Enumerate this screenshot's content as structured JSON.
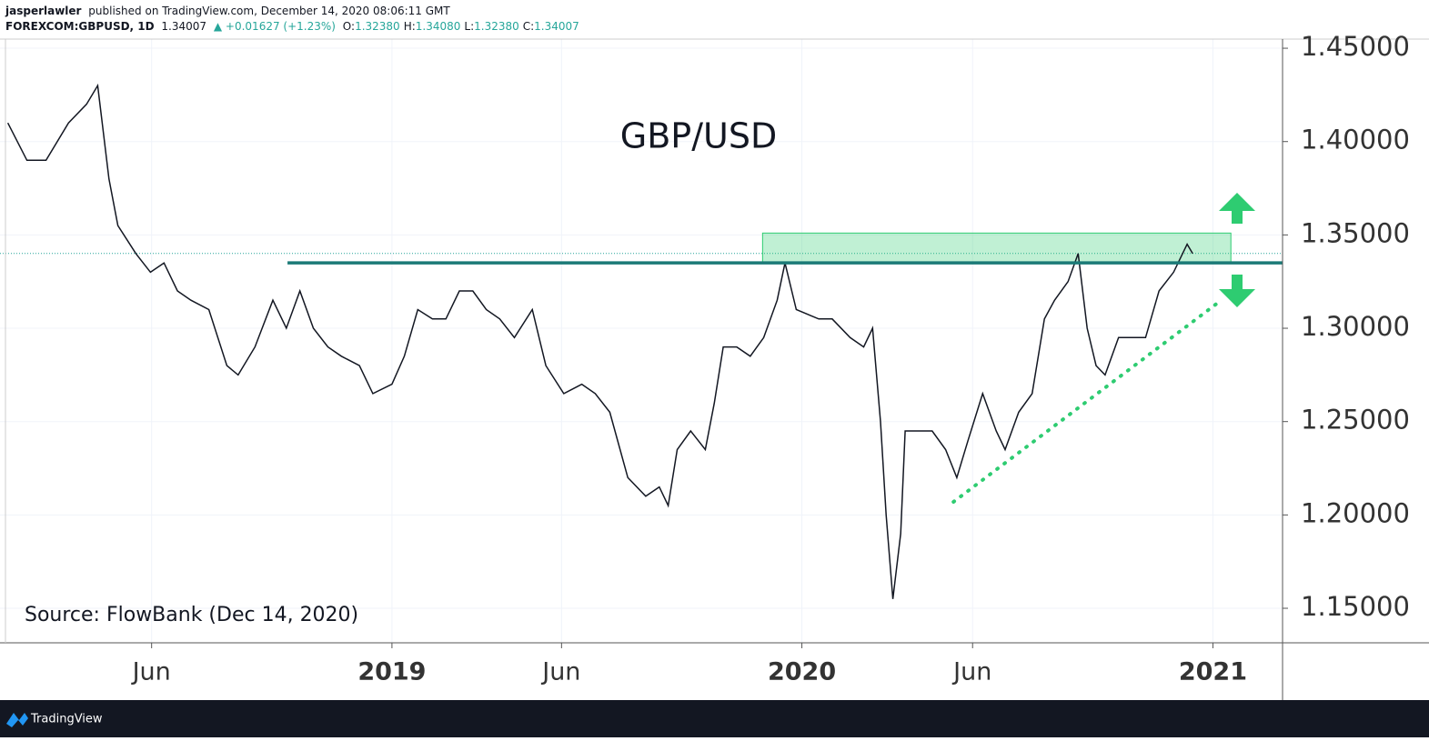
{
  "header": {
    "author": "jasperlawler",
    "published": "published on TradingView.com, December 14, 2020 08:06:11 GMT",
    "symbol": "FOREXCOM:GBPUSD, 1D",
    "last": "1.34007",
    "change": "▲ +0.01627 (+1.23%)",
    "ohlc": [
      {
        "label": "O:",
        "value": "1.32380"
      },
      {
        "label": "H:",
        "value": "1.34080"
      },
      {
        "label": "L:",
        "value": "1.32380"
      },
      {
        "label": "C:",
        "value": "1.34007"
      }
    ]
  },
  "footer": {
    "brand": "TradingView"
  },
  "chart_data": {
    "type": "line",
    "title": "GBP/USD",
    "annotation": "Source: FlowBank (Dec 14, 2020)",
    "color": "#131722",
    "x": [
      "2018-01-24",
      "2018-02-10",
      "2018-02-27",
      "2018-03-19",
      "2018-04-04",
      "2018-04-14",
      "2018-04-24",
      "2018-05-02",
      "2018-05-18",
      "2018-05-31",
      "2018-06-12",
      "2018-06-24",
      "2018-07-06",
      "2018-07-22",
      "2018-08-07",
      "2018-08-17",
      "2018-09-01",
      "2018-09-17",
      "2018-09-29",
      "2018-10-11",
      "2018-10-23",
      "2018-11-05",
      "2018-11-17",
      "2018-12-03",
      "2018-12-15",
      "2019-01-01",
      "2019-01-12",
      "2019-01-24",
      "2019-02-06",
      "2019-02-18",
      "2019-03-02",
      "2019-03-14",
      "2019-03-26",
      "2019-04-07",
      "2019-04-20",
      "2019-05-06",
      "2019-05-18",
      "2019-06-03",
      "2019-06-19",
      "2019-07-01",
      "2019-07-14",
      "2019-07-30",
      "2019-08-15",
      "2019-08-27",
      "2019-09-04",
      "2019-09-12",
      "2019-09-24",
      "2019-10-07",
      "2019-10-15",
      "2019-10-23",
      "2019-11-04",
      "2019-11-16",
      "2019-11-28",
      "2019-12-10",
      "2019-12-17",
      "2019-12-27",
      "2020-01-16",
      "2020-01-28",
      "2020-02-13",
      "2020-02-25",
      "2020-03-04",
      "2020-03-11",
      "2020-03-16",
      "2020-03-22",
      "2020-03-29",
      "2020-04-02",
      "2020-04-14",
      "2020-04-26",
      "2020-05-08",
      "2020-05-18",
      "2020-05-28",
      "2020-06-10",
      "2020-06-22",
      "2020-06-30",
      "2020-07-12",
      "2020-07-24",
      "2020-08-04",
      "2020-08-13",
      "2020-08-25",
      "2020-09-03",
      "2020-09-11",
      "2020-09-19",
      "2020-09-27",
      "2020-10-09",
      "2020-10-21",
      "2020-11-02",
      "2020-11-14",
      "2020-11-27",
      "2020-12-09",
      "2020-12-14"
    ],
    "values": [
      1.41,
      1.39,
      1.39,
      1.41,
      1.42,
      1.43,
      1.38,
      1.355,
      1.34,
      1.33,
      1.335,
      1.32,
      1.315,
      1.31,
      1.28,
      1.275,
      1.29,
      1.315,
      1.3,
      1.32,
      1.3,
      1.29,
      1.285,
      1.28,
      1.265,
      1.27,
      1.285,
      1.31,
      1.305,
      1.305,
      1.32,
      1.32,
      1.31,
      1.305,
      1.295,
      1.31,
      1.28,
      1.265,
      1.27,
      1.265,
      1.255,
      1.22,
      1.21,
      1.215,
      1.205,
      1.235,
      1.245,
      1.235,
      1.26,
      1.29,
      1.29,
      1.285,
      1.295,
      1.315,
      1.335,
      1.31,
      1.305,
      1.305,
      1.295,
      1.29,
      1.3,
      1.25,
      1.2,
      1.155,
      1.19,
      1.245,
      1.245,
      1.245,
      1.235,
      1.22,
      1.24,
      1.265,
      1.245,
      1.235,
      1.255,
      1.265,
      1.305,
      1.315,
      1.325,
      1.34,
      1.3,
      1.28,
      1.275,
      1.295,
      1.295,
      1.295,
      1.32,
      1.33,
      1.345,
      1.34
    ],
    "xlim": [
      "2018-01-17",
      "2021-03-04"
    ],
    "xticks": [
      {
        "value": "2018-06-01",
        "label": "Jun"
      },
      {
        "value": "2019-01-01",
        "label": "2019"
      },
      {
        "value": "2019-06-01",
        "label": "Jun"
      },
      {
        "value": "2020-01-01",
        "label": "2020"
      },
      {
        "value": "2020-06-01",
        "label": "Jun"
      },
      {
        "value": "2021-01-01",
        "label": "2021"
      }
    ],
    "ylim": [
      1.1315,
      1.4549
    ],
    "yticks": [
      {
        "value": 1.15,
        "label": "1.15000"
      },
      {
        "value": 1.2,
        "label": "1.20000"
      },
      {
        "value": 1.25,
        "label": "1.25000"
      },
      {
        "value": 1.3,
        "label": "1.30000"
      },
      {
        "value": 1.35,
        "label": "1.35000"
      },
      {
        "value": 1.4,
        "label": "1.40000"
      },
      {
        "value": 1.45,
        "label": "1.45000"
      }
    ],
    "grid": true,
    "last_price": 1.34007,
    "resistance": {
      "x": [
        "2018-09-30",
        "2021-03-04"
      ],
      "y": 1.335,
      "color": "#1b7a77"
    },
    "zone": {
      "x": [
        "2019-11-27",
        "2021-01-17"
      ],
      "y": [
        1.335,
        1.351
      ],
      "color": "#2ecc71"
    },
    "trend": {
      "x": [
        "2020-05-15",
        "2021-01-04"
      ],
      "y": [
        1.207,
        1.313
      ],
      "color": "#2ecc71"
    }
  }
}
